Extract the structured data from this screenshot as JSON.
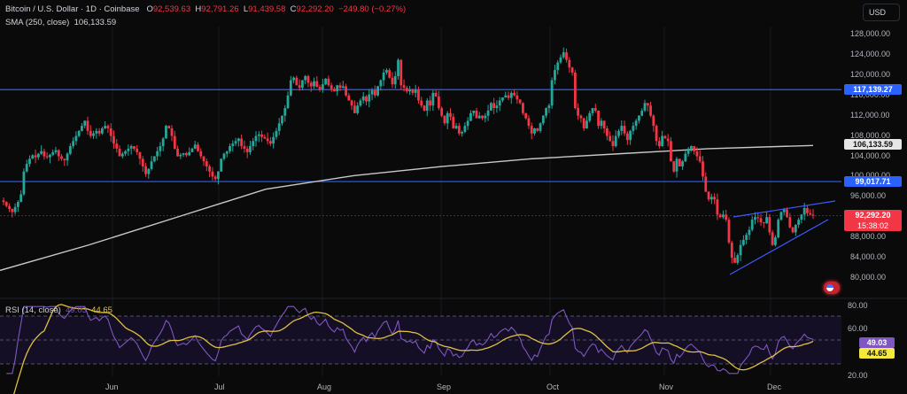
{
  "header": {
    "symbol": "Bitcoin / U.S. Dollar · 1D · Coinbase",
    "open_label": "O",
    "open": "92,539.63",
    "high_label": "H",
    "high": "92,791.26",
    "low_label": "L",
    "low": "91,439.58",
    "close_label": "C",
    "close": "92,292.20",
    "change": "−249.80 (−0.27%)",
    "sma_label": "SMA (250, close)",
    "sma_value": "106,133.59",
    "currency_button": "USD"
  },
  "rsi_legend": {
    "label": "RSI (14, close)",
    "rsi_value": "49.03",
    "ma_value": "44.65"
  },
  "price_axis": {
    "ticks": [
      "128,000.00",
      "124,000.00",
      "120,000.00",
      "116,000.00",
      "112,000.00",
      "108,000.00",
      "104,000.00",
      "100,000.00",
      "96,000.00",
      "92,000.00",
      "88,000.00",
      "84,000.00",
      "80,000.00"
    ],
    "tags": {
      "resistance": "117,139.27",
      "sma": "106,133.59",
      "support": "99,017.71",
      "last_price": "92,292.20",
      "countdown": "15:38:02"
    }
  },
  "rsi_axis": {
    "ticks": [
      "80.00",
      "60.00",
      "20.00"
    ],
    "tags": {
      "rsi": "49.03",
      "ma": "44.65"
    }
  },
  "time_axis": {
    "labels": [
      "Jun",
      "Jul",
      "Aug",
      "Sep",
      "Oct",
      "Nov",
      "Dec"
    ]
  },
  "colors": {
    "up": "#26a69a",
    "down": "#f23645",
    "hline": "#2962ff",
    "sma": "#c8c8c8",
    "rsi": "#7e57c2",
    "rsi_ma": "#e0c040",
    "wedge": "#3d5afe",
    "last_tag_bg": "#f23645",
    "blue_tag_bg": "#2962ff",
    "sma_tag_bg": "#e6e6e6",
    "rsi_tag_bg": "#7e57c2",
    "rsi_ma_tag_bg": "#f5e93c"
  },
  "chart_data": {
    "type": "candlestick",
    "title": "Bitcoin / U.S. Dollar · 1D · Coinbase",
    "xlabel": "",
    "ylabel": "USD",
    "ylim": [
      78000,
      130000
    ],
    "x_labels": [
      "Jun",
      "Jul",
      "Aug",
      "Sep",
      "Oct",
      "Nov",
      "Dec"
    ],
    "last": {
      "open": 92539.63,
      "high": 92791.26,
      "low": 91439.58,
      "close": 92292.2,
      "change": -249.8,
      "change_pct": -0.27
    },
    "horizontal_lines": [
      117139.27,
      99017.71
    ],
    "sma_250_last": 106133.59,
    "sma_250_path": [
      [
        0,
        81500
      ],
      [
        100,
        86500
      ],
      [
        200,
        92000
      ],
      [
        300,
        97500
      ],
      [
        400,
        100200
      ],
      [
        500,
        102000
      ],
      [
        600,
        103500
      ],
      [
        700,
        104500
      ],
      [
        800,
        105500
      ],
      [
        918,
        106133.59
      ]
    ],
    "wedge": {
      "upper": [
        [
          828,
          94700
        ],
        [
          943,
          97800
        ]
      ],
      "lower": [
        [
          824,
          83300
        ],
        [
          935,
          94000
        ]
      ]
    },
    "closes": [
      95000,
      94200,
      93600,
      93000,
      94000,
      95000,
      96500,
      101000,
      102500,
      103500,
      104200,
      103800,
      104500,
      105000,
      104000,
      103800,
      104300,
      104800,
      105200,
      104000,
      103500,
      103200,
      104500,
      106000,
      107000,
      108000,
      109000,
      110000,
      111000,
      109000,
      108000,
      108500,
      109000,
      108500,
      109500,
      110000,
      109500,
      108000,
      106500,
      105500,
      104000,
      104500,
      105000,
      105500,
      106000,
      105500,
      104800,
      103500,
      102000,
      100500,
      101500,
      103000,
      104000,
      105000,
      106000,
      107500,
      110000,
      109500,
      108000,
      105500,
      104000,
      104300,
      104600,
      104200,
      104800,
      105500,
      106300,
      105000,
      104000,
      103000,
      102000,
      101000,
      100000,
      99500,
      101000,
      103500,
      104500,
      105000,
      106000,
      106500,
      107000,
      107500,
      106000,
      105500,
      104800,
      106000,
      107000,
      108000,
      108300,
      107800,
      107500,
      107000,
      106500,
      107800,
      109000,
      110500,
      112000,
      113500,
      116000,
      119000,
      119500,
      118000,
      117500,
      119000,
      119800,
      118500,
      117800,
      118800,
      117700,
      117200,
      118200,
      119300,
      118000,
      117300,
      116800,
      118000,
      117500,
      117800,
      116000,
      115000,
      114000,
      112500,
      114000,
      115000,
      115800,
      114800,
      116200,
      117000,
      116000,
      117800,
      119000,
      120500,
      121000,
      119500,
      118200,
      119800,
      123000,
      118000,
      117500,
      116800,
      117200,
      116500,
      117100,
      115000,
      114000,
      113000,
      115000,
      114000,
      116500,
      115800,
      113500,
      112000,
      110500,
      112500,
      111800,
      109500,
      110000,
      108500,
      108800,
      110000,
      111000,
      112500,
      113000,
      111500,
      112000,
      111500,
      112000,
      113000,
      114500,
      113500,
      114000,
      115000,
      115600,
      116000,
      115500,
      116500,
      116000,
      115200,
      114500,
      112500,
      111500,
      110000,
      108500,
      109500,
      109000,
      110500,
      112000,
      113500,
      114000,
      119000,
      121000,
      122500,
      123500,
      124500,
      123000,
      121500,
      120500,
      113500,
      112000,
      111500,
      109500,
      111000,
      112500,
      113500,
      113000,
      110000,
      111000,
      109500,
      108000,
      107000,
      106000,
      108000,
      109000,
      110000,
      108500,
      107200,
      109000,
      110000,
      111000,
      112000,
      113000,
      114500,
      114000,
      112000,
      110000,
      107000,
      106000,
      108000,
      107500,
      107000,
      103000,
      101000,
      103500,
      102000,
      103000,
      104500,
      105500,
      106000,
      105000,
      104000,
      103000,
      100000,
      97000,
      95500,
      96000,
      95500,
      92500,
      92000,
      92500,
      91500,
      87000,
      84000,
      83000,
      84500,
      86500,
      87500,
      88500,
      89500,
      91500,
      92000,
      91800,
      91000,
      90800,
      92000,
      89000,
      86500,
      88000,
      91500,
      93000,
      93500,
      92000,
      90000,
      89000,
      90500,
      91500,
      92500,
      93800,
      92800,
      92500,
      92292
    ]
  }
}
